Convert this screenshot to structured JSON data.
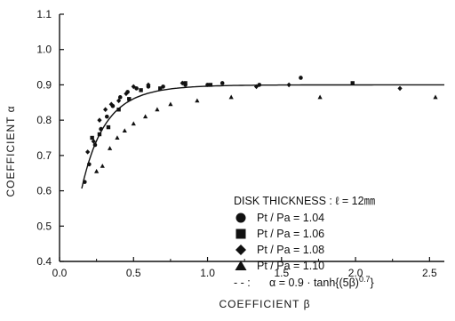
{
  "chart_data": {
    "type": "scatter",
    "xlabel": "COEFFICIENT β",
    "ylabel": "COEFFICIENT α",
    "xlim": [
      0,
      2.6
    ],
    "ylim": [
      0.4,
      1.1
    ],
    "x_ticks": [
      "0.0",
      "0.5",
      "1.0",
      "1.5",
      "2.0",
      "2.5"
    ],
    "y_ticks": [
      "0.4",
      "0.5",
      "0.6",
      "0.7",
      "0.8",
      "0.9",
      "1.0",
      "1.1"
    ],
    "grid": false,
    "legend_position": "center-right",
    "legend_title": "DISK THICKNESS : ℓ = 12㎜",
    "series": [
      {
        "name": "Pt / Pa = 1.04",
        "marker": "circle",
        "points": [
          [
            0.17,
            0.625
          ],
          [
            0.2,
            0.675
          ],
          [
            0.24,
            0.73
          ],
          [
            0.28,
            0.775
          ],
          [
            0.32,
            0.81
          ],
          [
            0.36,
            0.84
          ],
          [
            0.41,
            0.865
          ],
          [
            0.46,
            0.88
          ],
          [
            0.52,
            0.89
          ],
          [
            0.6,
            0.895
          ],
          [
            0.7,
            0.895
          ],
          [
            0.85,
            0.9
          ],
          [
            1.0,
            0.9
          ],
          [
            1.1,
            0.905
          ],
          [
            1.35,
            0.9
          ],
          [
            1.63,
            0.92
          ]
        ]
      },
      {
        "name": "Pt / Pa = 1.06",
        "marker": "square",
        "points": [
          [
            0.22,
            0.75
          ],
          [
            0.27,
            0.76
          ],
          [
            0.33,
            0.78
          ],
          [
            0.4,
            0.83
          ],
          [
            0.47,
            0.86
          ],
          [
            0.55,
            0.885
          ],
          [
            0.68,
            0.89
          ],
          [
            0.85,
            0.905
          ],
          [
            1.02,
            0.9
          ],
          [
            1.98,
            0.905
          ]
        ]
      },
      {
        "name": "Pt / Pa = 1.08",
        "marker": "diamond",
        "points": [
          [
            0.19,
            0.71
          ],
          [
            0.23,
            0.74
          ],
          [
            0.27,
            0.8
          ],
          [
            0.31,
            0.83
          ],
          [
            0.35,
            0.845
          ],
          [
            0.4,
            0.855
          ],
          [
            0.45,
            0.875
          ],
          [
            0.5,
            0.895
          ],
          [
            0.6,
            0.9
          ],
          [
            0.83,
            0.905
          ],
          [
            1.33,
            0.895
          ],
          [
            1.55,
            0.9
          ],
          [
            2.3,
            0.89
          ]
        ]
      },
      {
        "name": "Pt / Pa = 1.10",
        "marker": "triangle",
        "points": [
          [
            0.25,
            0.655
          ],
          [
            0.29,
            0.67
          ],
          [
            0.34,
            0.72
          ],
          [
            0.39,
            0.75
          ],
          [
            0.44,
            0.77
          ],
          [
            0.5,
            0.79
          ],
          [
            0.58,
            0.81
          ],
          [
            0.66,
            0.83
          ],
          [
            0.75,
            0.845
          ],
          [
            0.93,
            0.855
          ],
          [
            1.16,
            0.865
          ],
          [
            1.76,
            0.865
          ],
          [
            2.54,
            0.865
          ]
        ]
      }
    ],
    "fit_curve": {
      "label": "α = 0.9 · tanh{(5β)",
      "exponent": "0.7",
      "label_suffix": "}",
      "legend_prefix": "- - :",
      "coefficient": 0.9,
      "inner_scale": 5,
      "power": 0.7,
      "x_range": [
        0.15,
        2.6
      ]
    }
  }
}
